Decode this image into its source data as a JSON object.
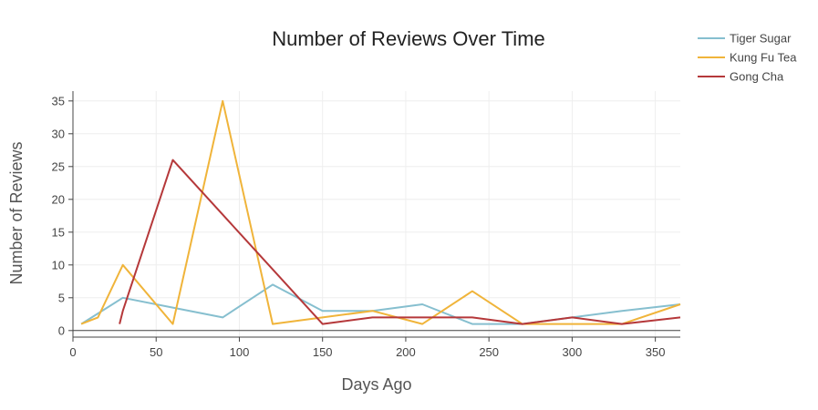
{
  "chart_data": {
    "type": "line",
    "title": "Number of Reviews Over Time",
    "xlabel": "Days Ago",
    "ylabel": "Number of Reviews",
    "xlim": [
      0,
      365
    ],
    "ylim": [
      -1,
      36.5
    ],
    "xticks": [
      0,
      50,
      100,
      150,
      200,
      250,
      300,
      350
    ],
    "yticks": [
      0,
      5,
      10,
      15,
      20,
      25,
      30,
      35
    ],
    "grid": true,
    "legend_position": "top-right",
    "series": [
      {
        "name": "Tiger Sugar",
        "color": "#86bfcf",
        "x": [
          5,
          30,
          60,
          90,
          120,
          150,
          180,
          210,
          240,
          270,
          300,
          330,
          365
        ],
        "y": [
          1,
          5,
          3.5,
          2,
          7,
          3,
          3,
          4,
          1,
          1,
          2,
          3,
          4
        ]
      },
      {
        "name": "Kung Fu Tea",
        "color": "#f0b43a",
        "x": [
          5,
          15,
          30,
          60,
          90,
          120,
          150,
          180,
          210,
          240,
          270,
          300,
          330,
          365
        ],
        "y": [
          1,
          2,
          10,
          1,
          35,
          1,
          2,
          3,
          1,
          6,
          1,
          1,
          1,
          4
        ]
      },
      {
        "name": "Gong Cha",
        "color": "#b5383a",
        "x": [
          28,
          30,
          60,
          150,
          180,
          240,
          270,
          300,
          330,
          365
        ],
        "y": [
          1,
          3,
          26,
          1,
          2,
          2,
          1,
          2,
          1,
          2
        ]
      }
    ]
  }
}
